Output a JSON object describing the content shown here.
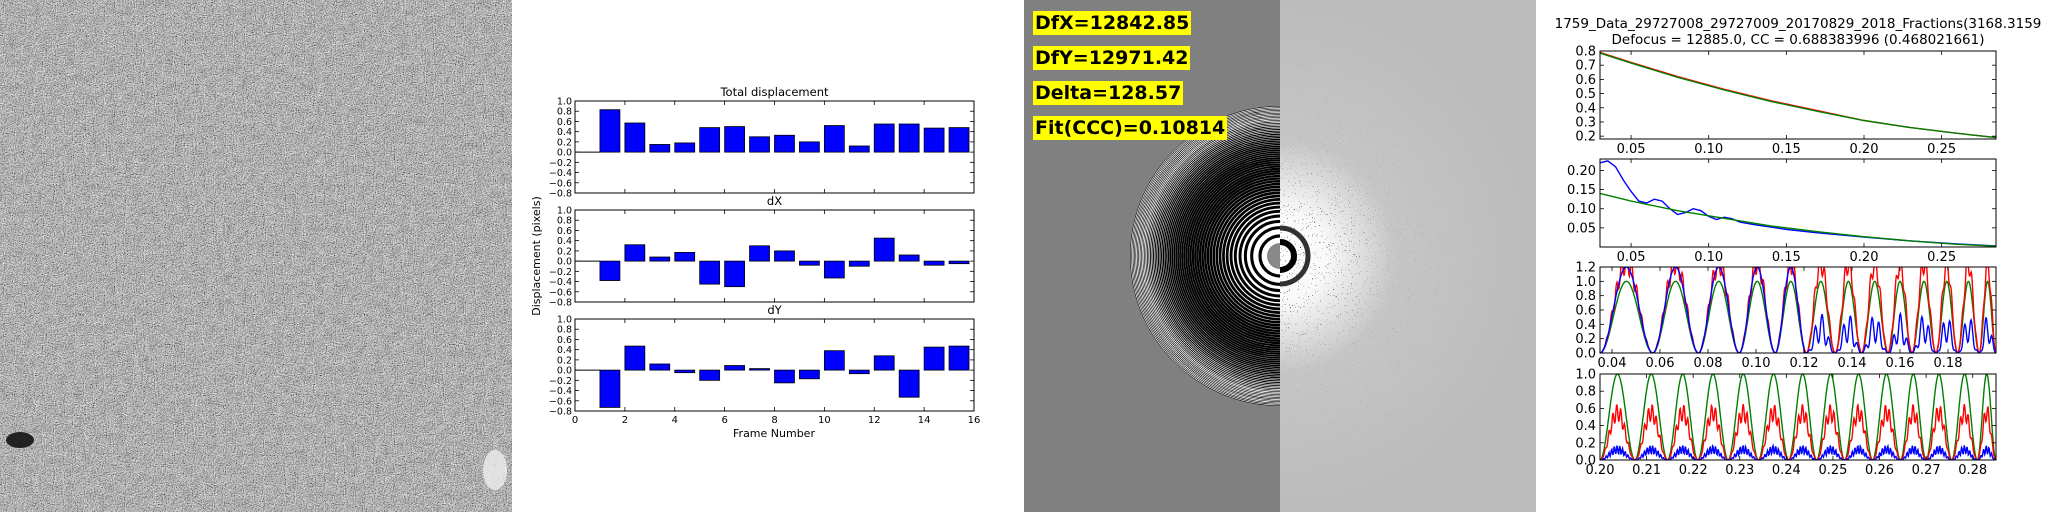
{
  "micrograph": {
    "description_icon": "micrograph-image"
  },
  "chart_data": [
    {
      "type": "bar",
      "title": "Total displacement",
      "xlabel": "",
      "ylabel": "Displacement (pixels)",
      "x": [
        1,
        2,
        3,
        4,
        5,
        6,
        7,
        8,
        9,
        10,
        11,
        12,
        13,
        14,
        15
      ],
      "values": [
        0.83,
        0.57,
        0.15,
        0.18,
        0.48,
        0.5,
        0.3,
        0.33,
        0.2,
        0.52,
        0.12,
        0.55,
        0.55,
        0.47,
        0.48
      ],
      "xlim": [
        0,
        16
      ],
      "ylim": [
        -0.8,
        1.0
      ],
      "yticks": [
        "1.0",
        "0.8",
        "0.6",
        "0.4",
        "0.2",
        "0.0",
        "−0.2",
        "−0.4",
        "−0.6",
        "−0.8"
      ],
      "color": "#0000ff"
    },
    {
      "type": "bar",
      "title": "dX",
      "x": [
        1,
        2,
        3,
        4,
        5,
        6,
        7,
        8,
        9,
        10,
        11,
        12,
        13,
        14,
        15
      ],
      "values": [
        -0.38,
        0.32,
        0.08,
        0.17,
        -0.45,
        -0.5,
        0.3,
        0.2,
        -0.08,
        -0.33,
        -0.1,
        0.45,
        0.12,
        -0.08,
        -0.05
      ],
      "xlim": [
        0,
        16
      ],
      "ylim": [
        -0.8,
        1.0
      ],
      "yticks": [
        "1.0",
        "0.8",
        "0.6",
        "0.4",
        "0.2",
        "0.0",
        "−0.2",
        "−0.4",
        "−0.6",
        "−0.8"
      ],
      "color": "#0000ff"
    },
    {
      "type": "bar",
      "title": "dY",
      "xlabel": "Frame Number",
      "x": [
        1,
        2,
        3,
        4,
        5,
        6,
        7,
        8,
        9,
        10,
        11,
        12,
        13,
        14,
        15
      ],
      "values": [
        -0.73,
        0.47,
        0.12,
        -0.05,
        -0.2,
        0.09,
        0.03,
        -0.25,
        -0.17,
        0.38,
        -0.07,
        0.28,
        -0.53,
        0.45,
        0.47
      ],
      "xlim": [
        0,
        16
      ],
      "ylim": [
        -0.8,
        1.0
      ],
      "yticks": [
        "1.0",
        "0.8",
        "0.6",
        "0.4",
        "0.2",
        "0.0",
        "−0.2",
        "−0.4",
        "−0.6",
        "−0.8"
      ],
      "xticks": [
        "0",
        "2",
        "4",
        "6",
        "8",
        "10",
        "12",
        "14",
        "16"
      ],
      "color": "#0000ff"
    },
    {
      "type": "line",
      "title": "1759_Data_29727008_29727009_20170829_2018_Fractions(3168.3159",
      "subtitle": "Defocus = 12885.0, CC = 0.688383996 (0.468021661)",
      "xlim": [
        0.03,
        0.285
      ],
      "ylim": [
        0.18,
        0.8
      ],
      "xticks": [
        "0.05",
        "0.10",
        "0.15",
        "0.20",
        "0.25"
      ],
      "yticks": [
        "0.8",
        "0.7",
        "0.6",
        "0.5",
        "0.4",
        "0.3",
        "0.2"
      ],
      "series": [
        {
          "color": "#ff0000",
          "x": [
            0.03,
            0.05,
            0.08,
            0.11,
            0.14,
            0.17,
            0.2,
            0.23,
            0.26,
            0.285
          ],
          "y": [
            0.79,
            0.72,
            0.62,
            0.53,
            0.45,
            0.38,
            0.31,
            0.26,
            0.22,
            0.19
          ]
        },
        {
          "color": "#008000",
          "x": [
            0.03,
            0.05,
            0.08,
            0.11,
            0.14,
            0.17,
            0.2,
            0.23,
            0.26,
            0.285
          ],
          "y": [
            0.785,
            0.715,
            0.615,
            0.525,
            0.445,
            0.375,
            0.31,
            0.26,
            0.22,
            0.19
          ]
        }
      ]
    },
    {
      "type": "line",
      "xlim": [
        0.03,
        0.285
      ],
      "ylim": [
        0.0,
        0.23
      ],
      "xticks": [
        "0.05",
        "0.10",
        "0.15",
        "0.20",
        "0.25"
      ],
      "yticks": [
        "0.20",
        "0.15",
        "0.10",
        "0.05"
      ],
      "series": [
        {
          "color": "#0000ff",
          "x": [
            0.03,
            0.035,
            0.04,
            0.045,
            0.05,
            0.055,
            0.06,
            0.065,
            0.07,
            0.075,
            0.08,
            0.085,
            0.09,
            0.095,
            0.1,
            0.105,
            0.11,
            0.115,
            0.12,
            0.13,
            0.14,
            0.15,
            0.17,
            0.2,
            0.23,
            0.26,
            0.285
          ],
          "y": [
            0.22,
            0.225,
            0.21,
            0.175,
            0.145,
            0.12,
            0.115,
            0.125,
            0.12,
            0.1,
            0.085,
            0.09,
            0.1,
            0.095,
            0.08,
            0.072,
            0.078,
            0.074,
            0.065,
            0.058,
            0.052,
            0.046,
            0.037,
            0.026,
            0.016,
            0.008,
            0.003
          ]
        },
        {
          "color": "#008000",
          "x": [
            0.03,
            0.05,
            0.08,
            0.11,
            0.14,
            0.17,
            0.2,
            0.23,
            0.26,
            0.285
          ],
          "y": [
            0.14,
            0.12,
            0.095,
            0.075,
            0.055,
            0.04,
            0.027,
            0.016,
            0.007,
            0.002
          ]
        }
      ]
    },
    {
      "type": "line",
      "xlim": [
        0.035,
        0.2
      ],
      "ylim": [
        0.0,
        1.2
      ],
      "xticks": [
        "0.04",
        "0.06",
        "0.08",
        "0.10",
        "0.12",
        "0.14",
        "0.16",
        "0.18"
      ],
      "yticks": [
        "1.2",
        "1.0",
        "0.8",
        "0.6",
        "0.4",
        "0.2",
        "0.0"
      ],
      "series": [
        {
          "color": "#008000",
          "name": "",
          "kind": "ctf",
          "zeros": [
            0.035,
            0.057,
            0.076,
            0.093,
            0.108,
            0.121,
            0.133,
            0.144,
            0.155,
            0.165,
            0.175,
            0.184,
            0.193,
            0.2
          ]
        },
        {
          "color": "#ff0000",
          "kind": "ctf-noisy",
          "zeros": [
            0.035,
            0.057,
            0.076,
            0.093,
            0.108,
            0.121,
            0.133,
            0.144,
            0.155,
            0.165,
            0.175,
            0.184,
            0.193,
            0.2
          ]
        },
        {
          "color": "#0000ff",
          "kind": "ctf-weak",
          "zeros": [
            0.035,
            0.057,
            0.076,
            0.093,
            0.108,
            0.121,
            0.133,
            0.144,
            0.155,
            0.165,
            0.175,
            0.184,
            0.193,
            0.2
          ]
        }
      ]
    },
    {
      "type": "line",
      "xlim": [
        0.2,
        0.285
      ],
      "ylim": [
        0.0,
        1.0
      ],
      "xticks": [
        "0.20",
        "0.21",
        "0.22",
        "0.23",
        "0.24",
        "0.25",
        "0.26",
        "0.27",
        "0.28"
      ],
      "yticks": [
        "1.0",
        "0.8",
        "0.6",
        "0.4",
        "0.2",
        "0.0"
      ],
      "series": [
        {
          "color": "#008000",
          "kind": "ctf",
          "zeros": [
            0.2,
            0.2075,
            0.2145,
            0.221,
            0.2275,
            0.234,
            0.2405,
            0.2465,
            0.2525,
            0.2585,
            0.2645,
            0.27,
            0.2755,
            0.281,
            0.285
          ]
        },
        {
          "color": "#ff0000",
          "kind": "ctf-mid",
          "zeros": [
            0.2,
            0.2075,
            0.2145,
            0.221,
            0.2275,
            0.234,
            0.2405,
            0.2465,
            0.2525,
            0.2585,
            0.2645,
            0.27,
            0.2755,
            0.281,
            0.285
          ]
        },
        {
          "color": "#0000ff",
          "kind": "ctf-low",
          "zeros": [
            0.2,
            0.2075,
            0.2145,
            0.221,
            0.2275,
            0.234,
            0.2405,
            0.2465,
            0.2525,
            0.2585,
            0.2645,
            0.27,
            0.2755,
            0.281,
            0.285
          ]
        }
      ]
    }
  ],
  "ctf": {
    "dfx": "DfX=12842.85",
    "dfy": "DfY=12971.42",
    "delta": "Delta=128.57",
    "fit": "Fit(CCC)=0.10814"
  }
}
